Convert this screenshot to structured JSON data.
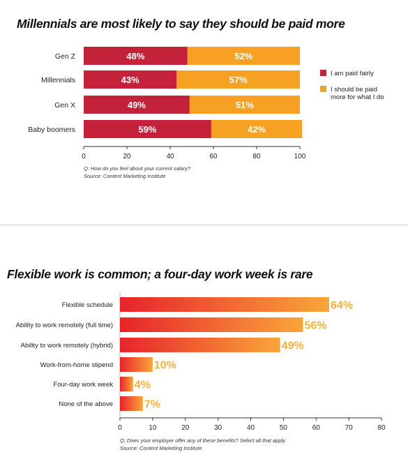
{
  "chart_data": [
    {
      "type": "bar",
      "stacked": true,
      "orientation": "horizontal",
      "title": "Millennials are most likely to say they should be paid more",
      "categories": [
        "Gen Z",
        "Millennials",
        "Gen X",
        "Baby boomers"
      ],
      "series": [
        {
          "name": "I am paid fairly",
          "values": [
            48,
            43,
            49,
            59
          ],
          "labels": [
            "48%",
            "43%",
            "49%",
            "59%"
          ],
          "color": "#c4213a"
        },
        {
          "name": "I should be paid more for what I do",
          "values": [
            52,
            57,
            51,
            42
          ],
          "labels": [
            "52%",
            "57%",
            "51%",
            "42%"
          ],
          "color": "#f7a124"
        }
      ],
      "xlim": [
        0,
        100
      ],
      "xticks": [
        0,
        20,
        40,
        60,
        80,
        100
      ],
      "legend_position": "right",
      "question": "Q: How do you feel about your current salary?",
      "source": "Source: Content Marketing Institute"
    },
    {
      "type": "bar",
      "orientation": "horizontal",
      "title": "Flexible work is common; a four-day work week is rare",
      "categories": [
        "Flexible schedule",
        "Ability to work remotely (full time)",
        "Ability to work remotely (hybrid)",
        "Work-from-home stipend",
        "Four-day work week",
        "None of the above"
      ],
      "values": [
        64,
        56,
        49,
        10,
        4,
        7
      ],
      "labels": [
        "64%",
        "56%",
        "49%",
        "10%",
        "4%",
        "7%"
      ],
      "gradient": [
        "#e8232b",
        "#f9a63a"
      ],
      "xlim": [
        0,
        80
      ],
      "xticks": [
        0,
        10,
        20,
        30,
        40,
        50,
        60,
        70,
        80
      ],
      "question": "Q: Does your employer offer any of these benefits? Select all that apply.",
      "source": "Source: Content Marketing Institute"
    }
  ]
}
